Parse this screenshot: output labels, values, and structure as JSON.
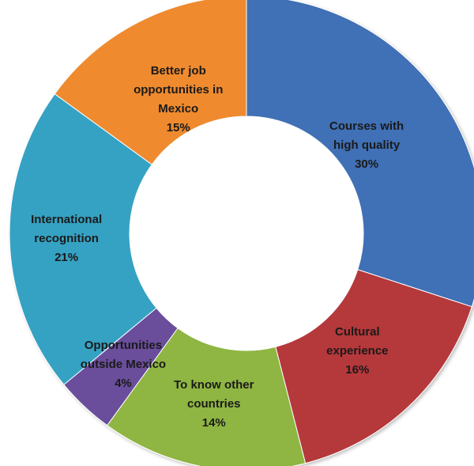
{
  "chart_data": {
    "type": "pie",
    "title": "",
    "slices": [
      {
        "name_lines": [
          "Courses with",
          "high quality"
        ],
        "percent_label": "30%",
        "value": 30,
        "color": "#3f6fb5"
      },
      {
        "name_lines": [
          "Cultural",
          "experience"
        ],
        "percent_label": "16%",
        "value": 16,
        "color": "#b5383a"
      },
      {
        "name_lines": [
          "To know other",
          "countries"
        ],
        "percent_label": "14%",
        "value": 14,
        "color": "#8fb543"
      },
      {
        "name_lines": [
          "Opportunities",
          "outside Mexico"
        ],
        "percent_label": "4%",
        "value": 4,
        "color": "#6b4d9b"
      },
      {
        "name_lines": [
          "International",
          "recognition"
        ],
        "percent_label": "21%",
        "value": 21,
        "color": "#35a2c3"
      },
      {
        "name_lines": [
          "Better job",
          "opportunities in",
          "Mexico"
        ],
        "percent_label": "15%",
        "value": 15,
        "color": "#ef8a2f"
      }
    ]
  }
}
